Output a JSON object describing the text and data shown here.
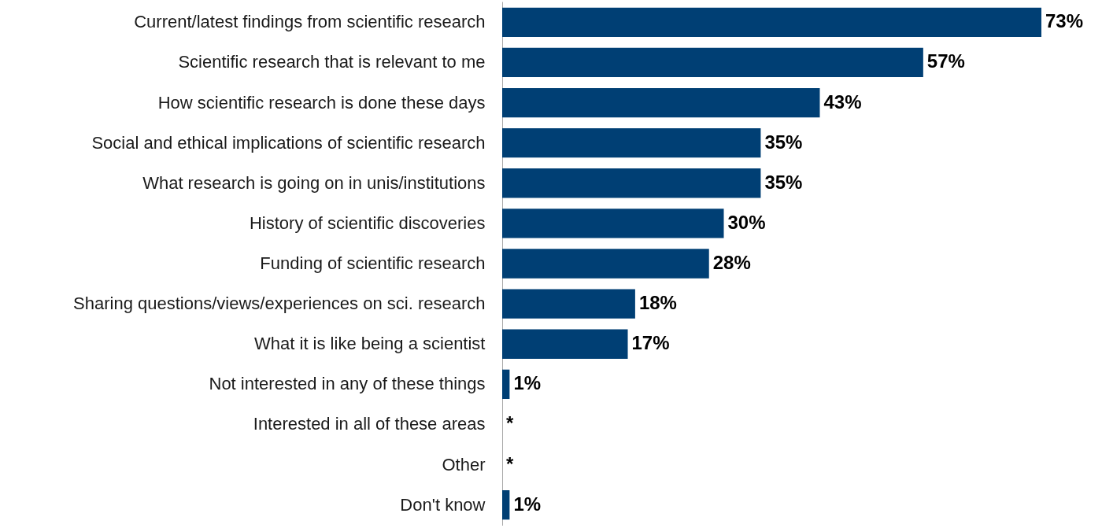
{
  "chart_data": {
    "type": "bar",
    "orientation": "horizontal",
    "categories": [
      "Current/latest findings from scientific research",
      "Scientific research that is relevant to me",
      "How scientific research is done these days",
      "Social and ethical implications of scientific research",
      "What research is going on in unis/institutions",
      "History of scientific discoveries",
      "Funding of scientific research",
      "Sharing questions/views/experiences on sci. research",
      "What it is like being a scientist",
      "Not interested in any of these things",
      "Interested in all of these areas",
      "Other",
      "Don't know"
    ],
    "series": [
      {
        "color": "#003f74",
        "values": [
          73,
          57,
          43,
          35,
          35,
          30,
          28,
          18,
          17,
          1,
          null,
          null,
          1
        ],
        "value_labels": [
          "73%",
          "57%",
          "43%",
          "35%",
          "35%",
          "30%",
          "28%",
          "18%",
          "17%",
          "1%",
          "*",
          "*",
          "1%"
        ]
      }
    ]
  }
}
